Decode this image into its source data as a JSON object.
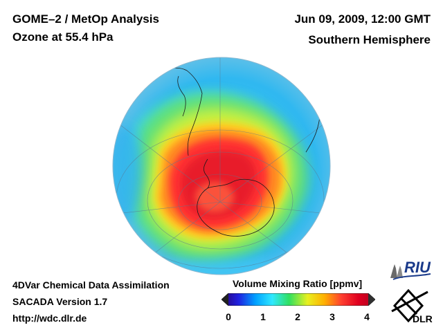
{
  "header": {
    "left_line1": "GOME–2 / MetOp Analysis",
    "left_line2": "Ozone at 55.4 hPa",
    "right_line1": "Jun 09, 2009, 12:00 GMT",
    "right_line2": "Southern Hemisphere"
  },
  "footer": {
    "line1": "4DVar Chemical Data Assimilation",
    "line2": "SACADA Version 1.7",
    "line3": "http://wdc.dlr.de"
  },
  "colorbar": {
    "title": "Volume Mixing Ratio [ppmv]",
    "ticks": [
      "0",
      "1",
      "2",
      "3",
      "4"
    ],
    "min": 0,
    "max": 4,
    "colors": [
      "#2a0070",
      "#2020e0",
      "#00a0ff",
      "#30e8ff",
      "#30e060",
      "#e8f020",
      "#ffb000",
      "#ff4030",
      "#e00020",
      "#b00020"
    ]
  },
  "logos": {
    "riu_text": "RIU",
    "dlr_text": "DLR"
  },
  "map": {
    "projection": "Southern Hemisphere orthographic",
    "variable": "Ozone volume mixing ratio"
  }
}
